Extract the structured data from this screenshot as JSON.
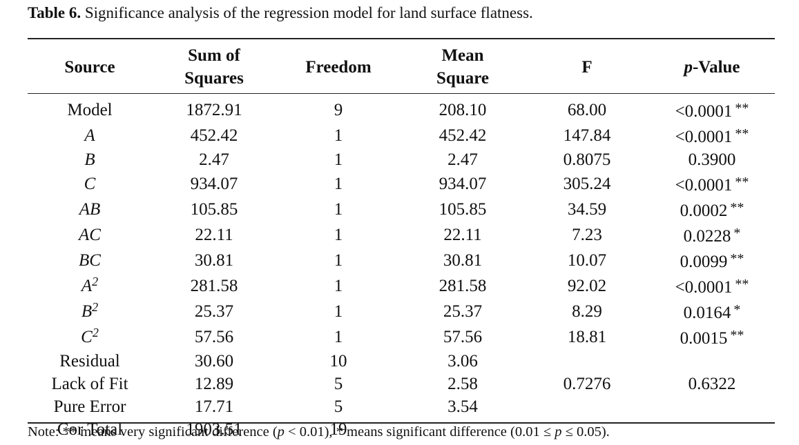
{
  "caption": {
    "label": "Table 6.",
    "text": "Significance analysis of the regression model for land surface flatness."
  },
  "headers": {
    "source": "Source",
    "ss_line1": "Sum of",
    "ss_line2": "Squares",
    "freedom": "Freedom",
    "ms_line1": "Mean",
    "ms_line2": "Square",
    "f": "F",
    "p_italic": "p",
    "p_rest": "-Value"
  },
  "rows": [
    {
      "source": "Model",
      "italic": false,
      "sup": "",
      "ss": "1872.91",
      "df": "9",
      "ms": "208.10",
      "f": "68.00",
      "p": "<0.0001",
      "sig": "**"
    },
    {
      "source": "A",
      "italic": true,
      "sup": "",
      "ss": "452.42",
      "df": "1",
      "ms": "452.42",
      "f": "147.84",
      "p": "<0.0001",
      "sig": "**"
    },
    {
      "source": "B",
      "italic": true,
      "sup": "",
      "ss": "2.47",
      "df": "1",
      "ms": "2.47",
      "f": "0.8075",
      "p": "0.3900",
      "sig": ""
    },
    {
      "source": "C",
      "italic": true,
      "sup": "",
      "ss": "934.07",
      "df": "1",
      "ms": "934.07",
      "f": "305.24",
      "p": "<0.0001",
      "sig": "**"
    },
    {
      "source": "AB",
      "italic": true,
      "sup": "",
      "ss": "105.85",
      "df": "1",
      "ms": "105.85",
      "f": "34.59",
      "p": "0.0002",
      "sig": "**"
    },
    {
      "source": "AC",
      "italic": true,
      "sup": "",
      "ss": "22.11",
      "df": "1",
      "ms": "22.11",
      "f": "7.23",
      "p": "0.0228",
      "sig": "*"
    },
    {
      "source": "BC",
      "italic": true,
      "sup": "",
      "ss": "30.81",
      "df": "1",
      "ms": "30.81",
      "f": "10.07",
      "p": "0.0099",
      "sig": "**"
    },
    {
      "source": "A",
      "italic": true,
      "sup": "2",
      "ss": "281.58",
      "df": "1",
      "ms": "281.58",
      "f": "92.02",
      "p": "<0.0001",
      "sig": "**"
    },
    {
      "source": "B",
      "italic": true,
      "sup": "2",
      "ss": "25.37",
      "df": "1",
      "ms": "25.37",
      "f": "8.29",
      "p": "0.0164",
      "sig": "*"
    },
    {
      "source": "C",
      "italic": true,
      "sup": "2",
      "ss": "57.56",
      "df": "1",
      "ms": "57.56",
      "f": "18.81",
      "p": "0.0015",
      "sig": "**"
    },
    {
      "source": "Residual",
      "italic": false,
      "sup": "",
      "ss": "30.60",
      "df": "10",
      "ms": "3.06",
      "f": "",
      "p": "",
      "sig": ""
    },
    {
      "source": "Lack of Fit",
      "italic": false,
      "sup": "",
      "ss": "12.89",
      "df": "5",
      "ms": "2.58",
      "f": "0.7276",
      "p": "0.6322",
      "sig": ""
    },
    {
      "source": "Pure Error",
      "italic": false,
      "sup": "",
      "ss": "17.71",
      "df": "5",
      "ms": "3.54",
      "f": "",
      "p": "",
      "sig": ""
    },
    {
      "source": "Cor Total",
      "italic": false,
      "sup": "",
      "ss": "1903.51",
      "df": "19",
      "ms": "",
      "f": "",
      "p": "",
      "sig": ""
    }
  ],
  "note": {
    "part1": "Note: ** means very significant difference (",
    "p1": "p",
    "part2": " < 0.01), * means significant difference (0.01 ≤ ",
    "p2": "p",
    "part3": " ≤ 0.05)."
  }
}
